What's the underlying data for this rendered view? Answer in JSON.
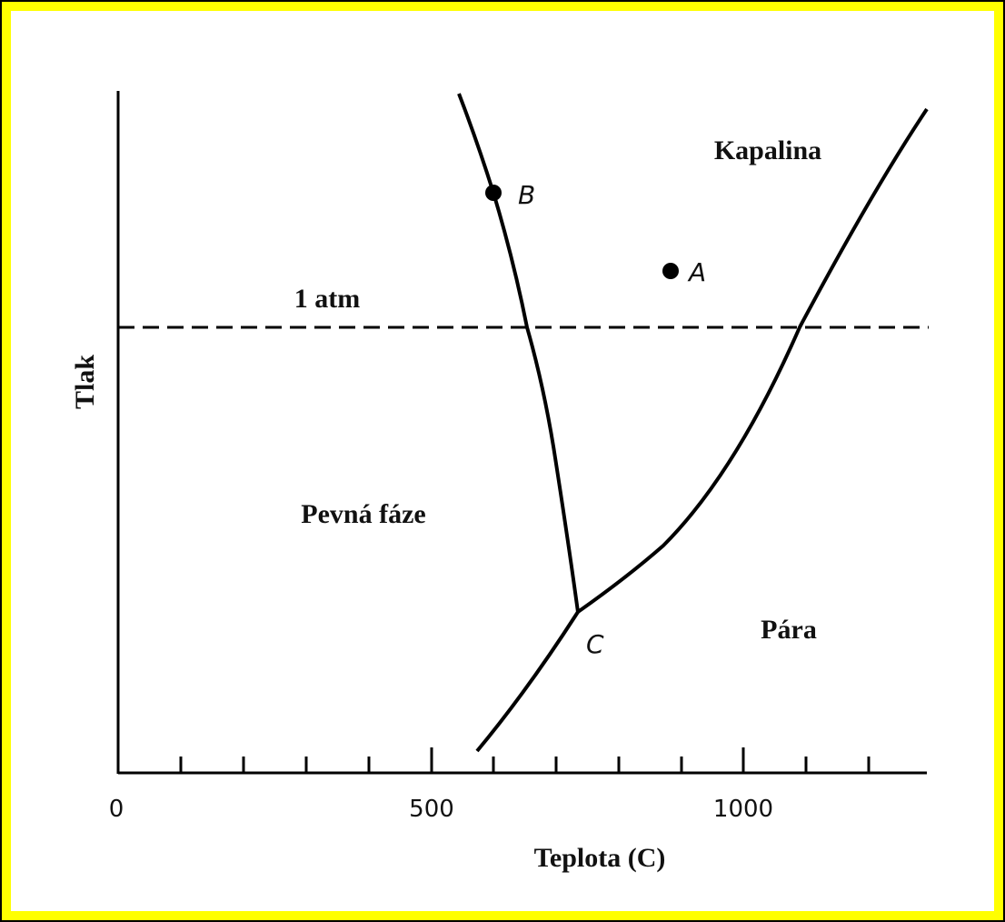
{
  "axes": {
    "y_label": "Tlak",
    "x_label": "Teplota (C)",
    "x_tick_labels": [
      "0",
      "500",
      "1000"
    ]
  },
  "regions": {
    "liquid": "Kapalina",
    "solid": "Pevná fáze",
    "vapor": "Pára"
  },
  "pressure_line": "1 atm",
  "points": {
    "a": "A",
    "b": "B",
    "c": "C"
  }
}
